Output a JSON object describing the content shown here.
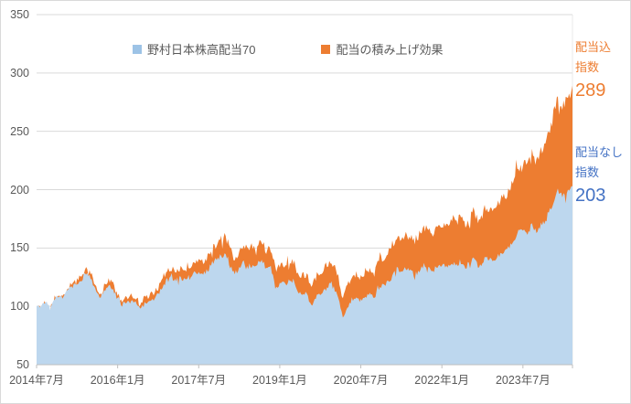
{
  "chart_data": {
    "type": "area",
    "title": "",
    "frequency": "monthly",
    "x_start": "2014-07",
    "x_end": "2024-06",
    "ylim": [
      50,
      350
    ],
    "grid": "horizontal",
    "y_ticks": [
      50,
      100,
      150,
      200,
      250,
      300,
      350
    ],
    "x_tick_labels": [
      "2014年7月",
      "2016年1月",
      "2017年7月",
      "2019年1月",
      "2020年7月",
      "2022年1月",
      "2023年7月"
    ],
    "x_tick_month_indices": [
      0,
      18,
      36,
      54,
      72,
      90,
      108
    ],
    "legend": [
      {
        "label": "野村日本株高配当70",
        "swatch_color": "#9DC3E6"
      },
      {
        "label": "配当の積み上げ効果",
        "swatch_color": "#ED7D31"
      }
    ],
    "series": [
      {
        "name": "野村日本株高配当70",
        "role": "price-index-without-dividends",
        "color": "#BDD7EE",
        "values": [
          100,
          101,
          104,
          97,
          107,
          109,
          108,
          114,
          117,
          120,
          123,
          127,
          125,
          115,
          106,
          113,
          118,
          115,
          106,
          101,
          105,
          104,
          103,
          97,
          102,
          104,
          106,
          110,
          117,
          123,
          124,
          123,
          124,
          122,
          126,
          128,
          129,
          127,
          131,
          137,
          141,
          143,
          146,
          135,
          128,
          133,
          137,
          134,
          136,
          135,
          142,
          131,
          133,
          117,
          118,
          121,
          119,
          122,
          112,
          110,
          111,
          100,
          108,
          110,
          114,
          119,
          116,
          107,
          90,
          100,
          104,
          107,
          105,
          109,
          110,
          107,
          116,
          118,
          120,
          126,
          132,
          130,
          132,
          130,
          127,
          131,
          135,
          132,
          131,
          133,
          135,
          133,
          138,
          136,
          138,
          133,
          135,
          141,
          134,
          137,
          143,
          139,
          141,
          145,
          147,
          151,
          158,
          163,
          165,
          163,
          170,
          163,
          169,
          174,
          182,
          192,
          200,
          194,
          198,
          203
        ]
      },
      {
        "name": "配当の積み上げ効果",
        "role": "total-return-index-with-dividends",
        "color": "#ED7D31",
        "values": [
          100,
          101,
          104,
          98,
          108,
          110,
          109,
          116,
          119,
          122,
          126,
          130,
          128,
          118,
          109,
          117,
          122,
          119,
          110,
          105,
          109,
          109,
          108,
          102,
          107,
          109,
          112,
          116,
          124,
          131,
          132,
          131,
          133,
          131,
          135,
          138,
          139,
          138,
          142,
          149,
          154,
          157,
          160,
          149,
          141,
          147,
          152,
          149,
          152,
          151,
          159,
          147,
          150,
          132,
          134,
          137,
          135,
          139,
          128,
          126,
          128,
          115,
          125,
          128,
          133,
          139,
          136,
          126,
          106,
          118,
          123,
          127,
          125,
          130,
          132,
          128,
          140,
          142,
          145,
          153,
          161,
          159,
          161,
          159,
          156,
          162,
          167,
          164,
          163,
          166,
          169,
          168,
          174,
          172,
          176,
          170,
          173,
          181,
          173,
          177,
          186,
          181,
          185,
          191,
          194,
          200,
          210,
          218,
          221,
          220,
          230,
          222,
          232,
          240,
          252,
          268,
          280,
          273,
          280,
          289
        ]
      }
    ],
    "annotations": [
      {
        "label_lines": [
          "配当込",
          "指数"
        ],
        "value": "289",
        "color": "#ED7D31"
      },
      {
        "label_lines": [
          "配当なし",
          "指数"
        ],
        "value": "203",
        "color": "#4472C4"
      }
    ],
    "colors": {
      "price_area_fill": "#BDD7EE",
      "dividend_area_fill": "#ED7D31",
      "gridline": "#D9D9D9",
      "axis_line": "#BFBFBF",
      "axis_text": "#595959",
      "annotation_orange": "#ED7D31",
      "annotation_blue": "#4472C4"
    }
  }
}
